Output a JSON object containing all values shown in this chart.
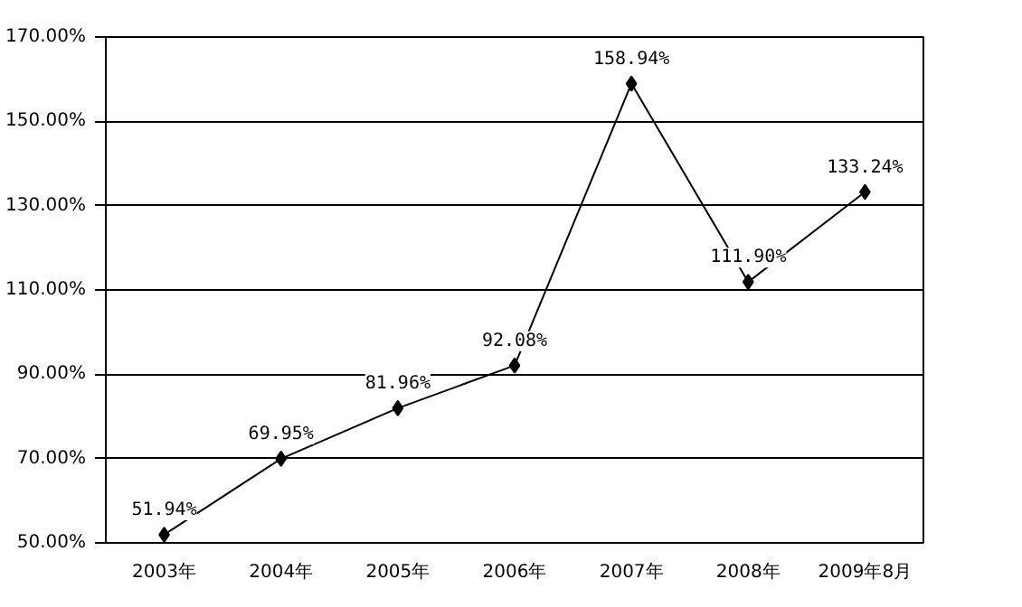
{
  "chart_data": {
    "type": "line",
    "categories": [
      "2003年",
      "2004年",
      "2005年",
      "2006年",
      "2007年",
      "2008年",
      "2009年8月"
    ],
    "series": [
      {
        "color": "#000000",
        "values": [
          51.94,
          69.95,
          81.96,
          92.08,
          158.94,
          111.9,
          133.24
        ],
        "value_labels": [
          "51.94%",
          "69.95%",
          "81.96%",
          "92.08%",
          "158.94%",
          "111.90%",
          "133.24%"
        ]
      }
    ],
    "ylim": [
      50,
      170
    ],
    "yticks": [
      {
        "value": 50,
        "label": "50.00%"
      },
      {
        "value": 70,
        "label": "70.00%"
      },
      {
        "value": 90,
        "label": "90.00%"
      },
      {
        "value": 110,
        "label": "110.00%"
      },
      {
        "value": 130,
        "label": "130.00%"
      },
      {
        "value": 150,
        "label": "150.00%"
      },
      {
        "value": 170,
        "label": "170.00%"
      }
    ],
    "grid": "y",
    "marker": "diamond",
    "line_style": "solid"
  }
}
